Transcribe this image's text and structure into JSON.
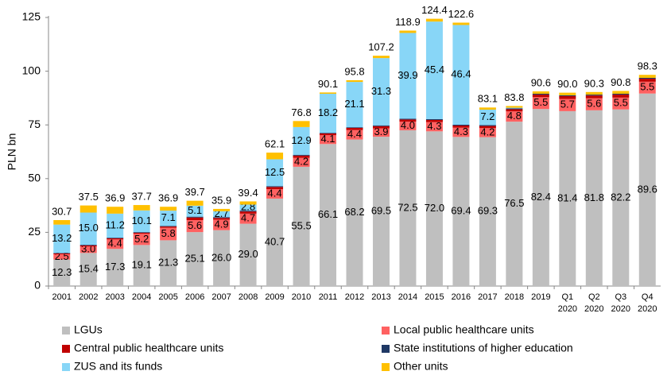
{
  "chart_data": {
    "type": "stacked_bar",
    "y_label": "PLN bn",
    "categories": [
      "2001",
      "2002",
      "2003",
      "2004",
      "2005",
      "2006",
      "2007",
      "2008",
      "2009",
      "2010",
      "2011",
      "2012",
      "2013",
      "2014",
      "2015",
      "2016",
      "2017",
      "2018",
      "2019",
      "Q1 2020",
      "Q2 2020",
      "Q3 2020",
      "Q4 2020"
    ],
    "ylim": [
      0,
      125
    ],
    "yticks": [
      0,
      25,
      50,
      75,
      100,
      125
    ],
    "grid": false,
    "legend": "bottom",
    "series": [
      {
        "name": "LGUs",
        "color": "#bfbfbf",
        "values": [
          12.3,
          15.4,
          17.3,
          19.1,
          21.3,
          25.1,
          26.0,
          29.0,
          40.7,
          55.5,
          66.1,
          68.2,
          69.5,
          72.5,
          72.0,
          69.4,
          69.3,
          76.5,
          82.4,
          81.4,
          81.8,
          82.2,
          89.6
        ],
        "value_labels": [
          "12.3",
          "15.4",
          "17.3",
          "19.1",
          "21.3",
          "25.1",
          "26.0",
          "29.0",
          "40.7",
          "55.5",
          "66.1",
          "68.2",
          "69.5",
          "72.5",
          "72.0",
          "69.4",
          "69.3",
          "76.5",
          "82.4",
          "81.4",
          "81.8",
          "82.2",
          "89.6"
        ]
      },
      {
        "name": "Local public healthcare units",
        "color": "#ff6161",
        "values": [
          2.5,
          3.0,
          4.4,
          5.2,
          5.8,
          5.6,
          4.9,
          4.7,
          4.4,
          4.2,
          4.1,
          4.4,
          3.9,
          4.0,
          4.3,
          4.3,
          4.2,
          4.8,
          5.5,
          5.7,
          5.6,
          5.5,
          5.5
        ],
        "value_labels": [
          "2.5",
          "3.0",
          "4.4",
          "5.2",
          "5.8",
          "5.6",
          "4.9",
          "4.7",
          "4.4",
          "4.2",
          "4.1",
          "4.4",
          "3.9",
          "4.0",
          "4.3",
          "4.3",
          "4.2",
          "4.8",
          "5.5",
          "5.7",
          "5.6",
          "5.5",
          "5.5"
        ]
      },
      {
        "name": "Central public healthcare units",
        "color": "#c00000",
        "values": [
          0.4,
          0.5,
          0.5,
          0.5,
          0.6,
          1.2,
          0.8,
          1.0,
          1.0,
          1.0,
          0.8,
          1.0,
          1.0,
          1.0,
          1.0,
          1.0,
          1.0,
          1.0,
          1.2,
          1.3,
          1.3,
          1.4,
          1.4
        ]
      },
      {
        "name": "State institutions of higher education",
        "color": "#1f3864",
        "values": [
          0.2,
          0.3,
          0.3,
          0.3,
          0.3,
          0.4,
          0.4,
          0.4,
          0.4,
          0.4,
          0.3,
          0.3,
          0.4,
          0.4,
          0.4,
          0.4,
          0.4,
          0.4,
          0.4,
          0.4,
          0.4,
          0.4,
          0.4
        ]
      },
      {
        "name": "ZUS and its funds",
        "color": "#88d6f7",
        "values": [
          13.2,
          15.0,
          11.2,
          10.1,
          7.1,
          5.1,
          2.7,
          2.8,
          12.5,
          12.9,
          18.2,
          21.1,
          31.3,
          39.9,
          45.4,
          46.4,
          7.2,
          0.3,
          0,
          0,
          0,
          0,
          0
        ],
        "value_labels": [
          "13.2",
          "15.0",
          "11.2",
          "10.1",
          "7.1",
          "5.1",
          "2.7",
          "2.8",
          "12.5",
          "12.9",
          "18.2",
          "21.1",
          "31.3",
          "39.9",
          "45.4",
          "46.4",
          "7.2",
          null,
          null,
          null,
          null,
          null,
          null
        ]
      },
      {
        "name": "Other units",
        "color": "#ffc000",
        "values": [
          2.1,
          3.3,
          3.2,
          2.5,
          1.8,
          2.3,
          1.1,
          1.5,
          3.1,
          2.8,
          0.6,
          0.8,
          1.1,
          1.1,
          1.3,
          1.1,
          1.0,
          0.8,
          1.1,
          1.2,
          1.2,
          1.3,
          1.4
        ]
      }
    ],
    "totals": [
      30.7,
      37.5,
      36.9,
      37.7,
      36.9,
      39.7,
      35.9,
      39.4,
      62.1,
      76.8,
      90.1,
      95.8,
      107.2,
      118.9,
      124.4,
      122.6,
      83.1,
      83.8,
      90.6,
      90.0,
      90.3,
      90.8,
      98.3
    ],
    "total_labels": [
      "30.7",
      "37.5",
      "36.9",
      "37.7",
      "36.9",
      "39.7",
      "35.9",
      "39.4",
      "62.1",
      "76.8",
      "90.1",
      "95.8",
      "107.2",
      "118.9",
      "124.4",
      "122.6",
      "83.1",
      "83.8",
      "90.6",
      "90.0",
      "90.3",
      "90.8",
      "98.3"
    ]
  }
}
